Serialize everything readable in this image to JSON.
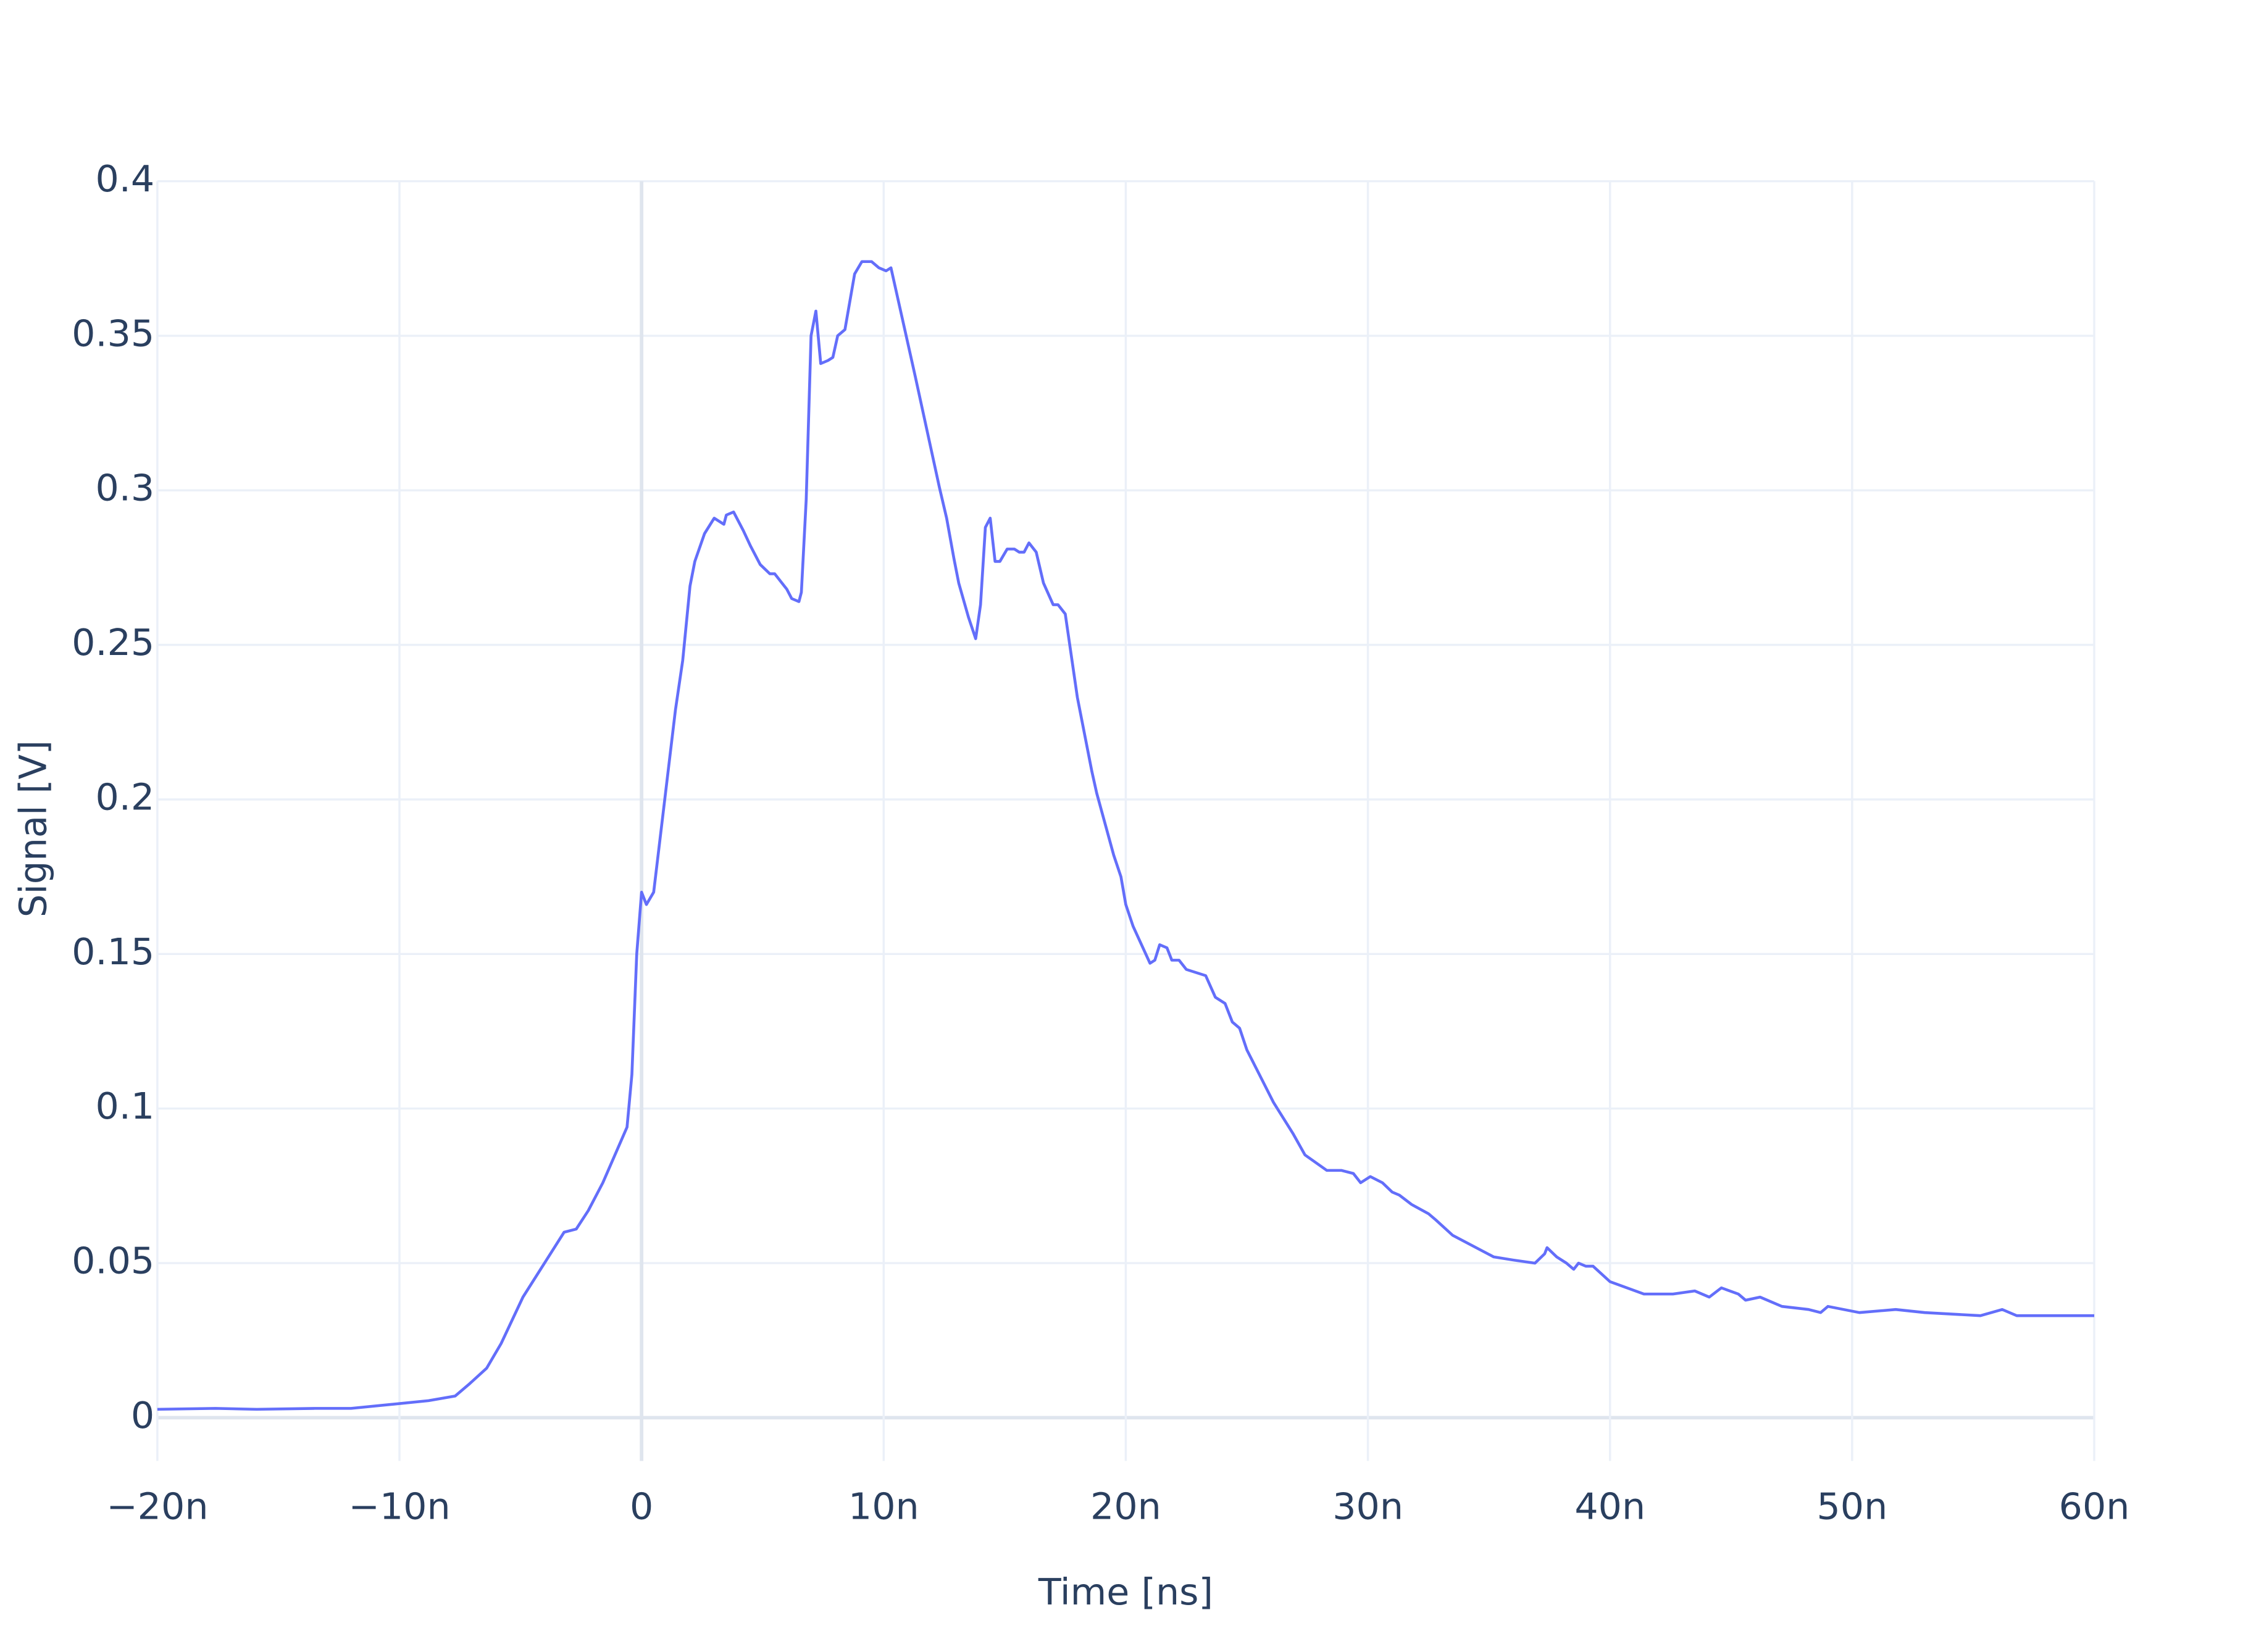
{
  "chart_data": {
    "type": "line",
    "x_label": "Time [ns]",
    "y_label": "Signal [V]",
    "color": "#636efa",
    "grid": true,
    "xlim": [
      -20,
      60
    ],
    "ylim": [
      -0.014,
      0.4
    ],
    "xticks": [
      {
        "value": -20,
        "label": "−20n"
      },
      {
        "value": -10,
        "label": "−10n"
      },
      0,
      {
        "value": 10,
        "label": "10n"
      },
      {
        "value": 20,
        "label": "20n"
      },
      {
        "value": 30,
        "label": "30n"
      },
      {
        "value": 40,
        "label": "40n"
      },
      {
        "value": 50,
        "label": "50n"
      },
      {
        "value": 60,
        "label": "60n"
      }
    ],
    "yticks": [
      0,
      0.05,
      0.1,
      0.15,
      0.2,
      0.25,
      0.3,
      0.35,
      0.4
    ],
    "x": [
      -20,
      -17.6,
      -15.9,
      -13.5,
      -12,
      -8.8,
      -7.7,
      -7.1,
      -6.4,
      -5.8,
      -4.9,
      -3.2,
      -2.7,
      -2.2,
      -1.6,
      -0.6,
      -0.4,
      -0.2,
      0,
      0.2,
      0.5,
      1.4,
      1.7,
      2.0,
      2.2,
      2.6,
      3.0,
      3.4,
      3.5,
      3.8,
      4.2,
      4.5,
      4.9,
      5.3,
      5.5,
      5.8,
      6.0,
      6.2,
      6.5,
      6.6,
      6.8,
      7.0,
      7.2,
      7.4,
      7.7,
      7.9,
      8.1,
      8.4,
      8.8,
      9.1,
      9.5,
      9.8,
      10.1,
      10.3,
      11.3,
      12.3,
      12.6,
      12.9,
      13.1,
      13.5,
      13.8,
      14.0,
      14.2,
      14.4,
      14.6,
      14.8,
      15.1,
      15.4,
      15.6,
      15.8,
      16.0,
      16.3,
      16.6,
      17.0,
      17.2,
      17.5,
      18.0,
      18.6,
      18.8,
      19.5,
      19.8,
      20.0,
      20.3,
      21.0,
      21.2,
      21.4,
      21.7,
      21.9,
      22.2,
      22.5,
      22.9,
      23.3,
      23.7,
      24.1,
      24.4,
      24.7,
      25.0,
      26.1,
      26.9,
      27.4,
      28.3,
      28.9,
      29.4,
      29.7,
      30.1,
      30.6,
      31.0,
      31.3,
      31.8,
      32.5,
      32.8,
      33.5,
      35.2,
      36.0,
      36.9,
      37.3,
      37.4,
      37.8,
      38.2,
      38.5,
      38.7,
      39.0,
      39.3,
      40.0,
      41.4,
      42.6,
      43.5,
      44.1,
      44.6,
      45.3,
      45.6,
      46.2,
      47.1,
      48.2,
      48.7,
      49.0,
      50.3,
      51.8,
      53.0,
      55.3,
      56.2,
      56.8,
      58.6,
      60.0
    ],
    "values": [
      0.0027,
      0.003,
      0.0027,
      0.003,
      0.003,
      0.0055,
      0.007,
      0.011,
      0.016,
      0.024,
      0.039,
      0.06,
      0.061,
      0.067,
      0.076,
      0.094,
      0.111,
      0.15,
      0.17,
      0.166,
      0.17,
      0.229,
      0.245,
      0.269,
      0.277,
      0.286,
      0.291,
      0.289,
      0.292,
      0.293,
      0.287,
      0.282,
      0.276,
      0.273,
      0.273,
      0.27,
      0.268,
      0.265,
      0.264,
      0.267,
      0.297,
      0.35,
      0.358,
      0.341,
      0.342,
      0.343,
      0.35,
      0.352,
      0.37,
      0.374,
      0.374,
      0.372,
      0.371,
      0.372,
      0.337,
      0.301,
      0.291,
      0.278,
      0.27,
      0.259,
      0.252,
      0.263,
      0.288,
      0.291,
      0.277,
      0.277,
      0.281,
      0.281,
      0.28,
      0.28,
      0.283,
      0.28,
      0.27,
      0.263,
      0.263,
      0.26,
      0.233,
      0.209,
      0.202,
      0.182,
      0.175,
      0.166,
      0.159,
      0.147,
      0.148,
      0.153,
      0.152,
      0.148,
      0.148,
      0.145,
      0.144,
      0.143,
      0.136,
      0.134,
      0.128,
      0.126,
      0.119,
      0.102,
      0.092,
      0.085,
      0.08,
      0.08,
      0.079,
      0.076,
      0.078,
      0.076,
      0.073,
      0.072,
      0.069,
      0.066,
      0.064,
      0.059,
      0.052,
      0.051,
      0.05,
      0.053,
      0.055,
      0.052,
      0.05,
      0.048,
      0.05,
      0.049,
      0.049,
      0.044,
      0.04,
      0.04,
      0.041,
      0.039,
      0.042,
      0.04,
      0.038,
      0.039,
      0.036,
      0.035,
      0.034,
      0.036,
      0.034,
      0.035,
      0.034,
      0.033,
      0.035,
      0.033,
      0.033,
      0.033
    ]
  }
}
